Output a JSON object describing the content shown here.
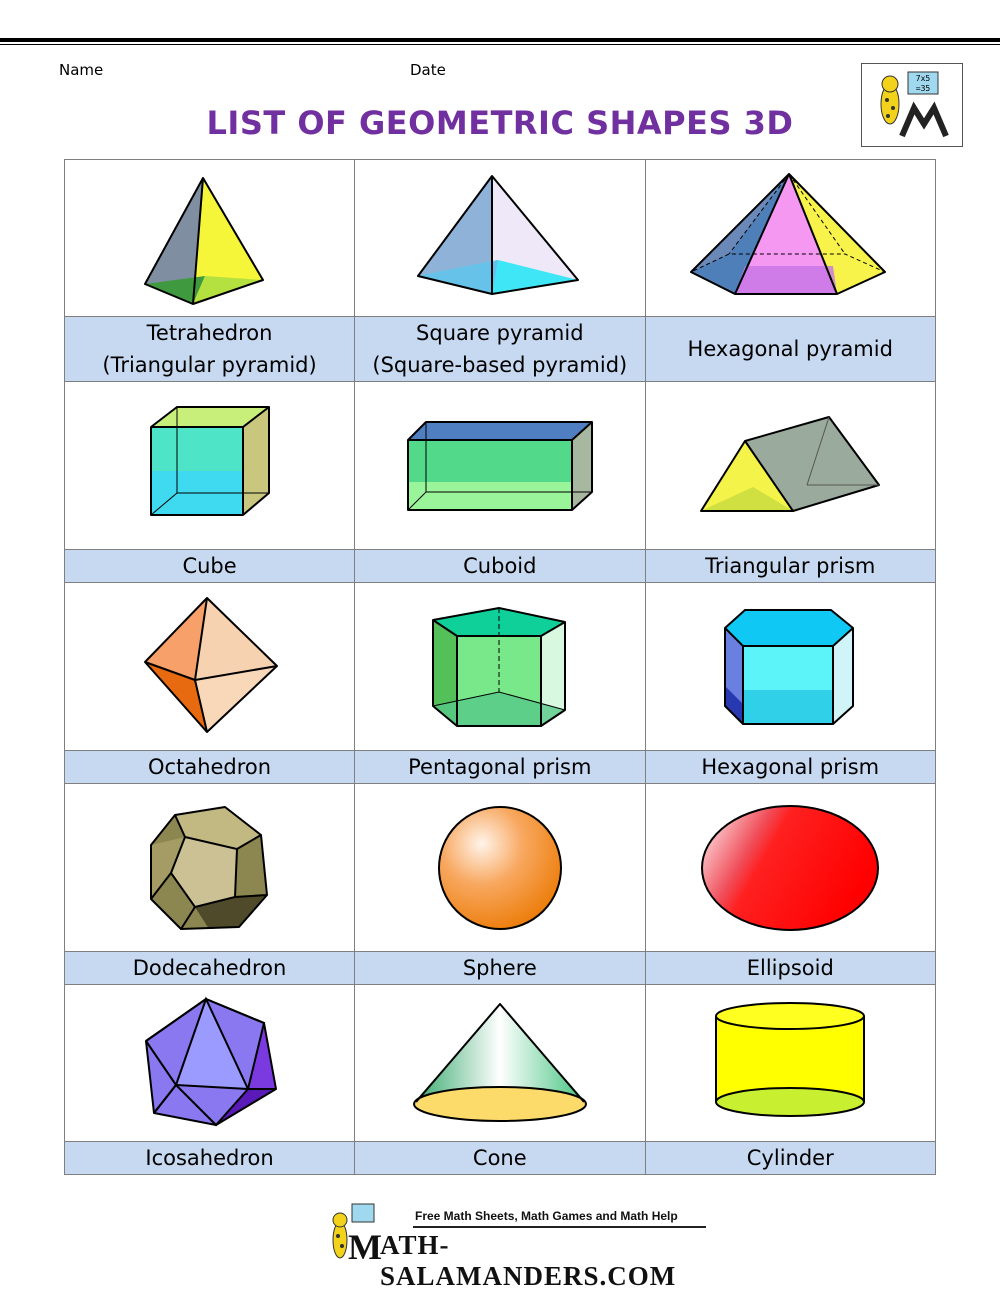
{
  "header": {
    "name_label": "Name",
    "date_label": "Date"
  },
  "title": "LIST OF GEOMETRIC SHAPES 3D",
  "logo": {
    "badge_line1": "7x5",
    "badge_line2": "=35"
  },
  "rows": [
    [
      "Tetrahedron\n(Triangular pyramid)",
      "Square pyramid\n(Square-based pyramid)",
      "Hexagonal pyramid"
    ],
    [
      "Cube",
      "Cuboid",
      "Triangular prism"
    ],
    [
      "Octahedron",
      "Pentagonal prism",
      "Hexagonal prism"
    ],
    [
      "Dodecahedron",
      "Sphere",
      "Ellipsoid"
    ],
    [
      "Icosahedron",
      "Cone",
      "Cylinder"
    ]
  ],
  "footer": {
    "tagline": "Free Math Sheets, Math Games and Math Help",
    "site": "ATH-SALAMANDERS.COM",
    "site_initial": "M"
  }
}
